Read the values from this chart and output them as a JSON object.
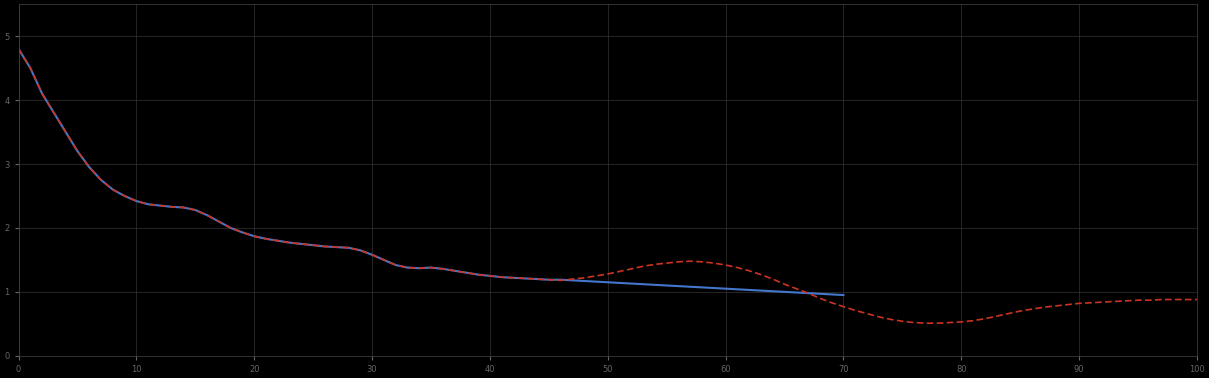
{
  "title": "",
  "background_color": "#000000",
  "plot_bg_color": "#000000",
  "grid_color": "#333333",
  "fig_width": 12.09,
  "fig_height": 3.78,
  "dpi": 100,
  "blue_line": {
    "color": "#4477cc",
    "linewidth": 1.5,
    "linestyle": "-",
    "x": [
      0,
      1,
      2,
      3,
      4,
      5,
      6,
      7,
      8,
      9,
      10,
      11,
      12,
      13,
      14,
      15,
      16,
      17,
      18,
      19,
      20,
      21,
      22,
      23,
      24,
      25,
      26,
      27,
      28,
      29,
      30,
      31,
      32,
      33,
      34,
      35,
      36,
      37,
      38,
      39,
      40,
      41,
      42,
      43,
      44,
      45,
      46,
      47,
      48,
      49,
      50,
      51,
      52,
      53,
      54,
      55,
      56,
      57,
      58,
      59,
      60,
      61,
      62,
      63,
      64,
      65,
      66,
      67,
      68,
      69,
      70,
      71,
      72,
      73,
      74,
      75,
      76,
      77,
      78,
      79,
      80,
      81,
      82,
      83,
      84,
      85,
      86,
      87,
      88,
      89,
      90,
      91,
      92,
      93,
      94,
      95,
      96,
      97,
      98,
      99,
      100
    ],
    "y": [
      4.8,
      4.5,
      4.1,
      3.8,
      3.5,
      3.2,
      2.95,
      2.75,
      2.6,
      2.5,
      2.42,
      2.37,
      2.35,
      2.33,
      2.32,
      2.28,
      2.2,
      2.1,
      2.0,
      1.93,
      1.87,
      1.83,
      1.8,
      1.77,
      1.75,
      1.73,
      1.71,
      1.7,
      1.69,
      1.65,
      1.58,
      1.5,
      1.42,
      1.38,
      1.37,
      1.38,
      1.36,
      1.33,
      1.3,
      1.27,
      1.25,
      1.23,
      1.22,
      1.21,
      1.2,
      1.19,
      1.19,
      1.18,
      1.17,
      1.16,
      1.15,
      1.14,
      1.13,
      1.12,
      1.11,
      1.1,
      1.09,
      1.08,
      1.07,
      1.06,
      1.05,
      1.04,
      1.03,
      1.02,
      1.01,
      1.0,
      0.99,
      0.98,
      0.97,
      0.96,
      0.95,
      null,
      null,
      null,
      null,
      null,
      null,
      null,
      null,
      null,
      null,
      null,
      null,
      null,
      null,
      null,
      null,
      null,
      null,
      null,
      null,
      null,
      null,
      null,
      null,
      null,
      null,
      null,
      null,
      null,
      null
    ]
  },
  "red_line": {
    "color": "#cc3322",
    "linewidth": 1.2,
    "linestyle": "--",
    "x": [
      0,
      1,
      2,
      3,
      4,
      5,
      6,
      7,
      8,
      9,
      10,
      11,
      12,
      13,
      14,
      15,
      16,
      17,
      18,
      19,
      20,
      21,
      22,
      23,
      24,
      25,
      26,
      27,
      28,
      29,
      30,
      31,
      32,
      33,
      34,
      35,
      36,
      37,
      38,
      39,
      40,
      41,
      42,
      43,
      44,
      45,
      46,
      47,
      48,
      49,
      50,
      51,
      52,
      53,
      54,
      55,
      56,
      57,
      58,
      59,
      60,
      61,
      62,
      63,
      64,
      65,
      66,
      67,
      68,
      69,
      70,
      71,
      72,
      73,
      74,
      75,
      76,
      77,
      78,
      79,
      80,
      81,
      82,
      83,
      84,
      85,
      86,
      87,
      88,
      89,
      90,
      91,
      92,
      93,
      94,
      95,
      96,
      97,
      98,
      99,
      100
    ],
    "y": [
      4.8,
      4.5,
      4.1,
      3.8,
      3.5,
      3.2,
      2.95,
      2.75,
      2.6,
      2.5,
      2.42,
      2.37,
      2.35,
      2.33,
      2.32,
      2.28,
      2.2,
      2.1,
      2.0,
      1.93,
      1.87,
      1.83,
      1.8,
      1.77,
      1.75,
      1.73,
      1.71,
      1.7,
      1.69,
      1.65,
      1.58,
      1.5,
      1.42,
      1.38,
      1.37,
      1.38,
      1.36,
      1.33,
      1.3,
      1.27,
      1.25,
      1.23,
      1.22,
      1.21,
      1.2,
      1.19,
      1.18,
      1.2,
      1.22,
      1.25,
      1.28,
      1.32,
      1.36,
      1.4,
      1.43,
      1.45,
      1.47,
      1.48,
      1.47,
      1.45,
      1.42,
      1.38,
      1.33,
      1.27,
      1.2,
      1.12,
      1.05,
      0.98,
      0.9,
      0.83,
      0.77,
      0.71,
      0.66,
      0.61,
      0.57,
      0.54,
      0.52,
      0.51,
      0.51,
      0.52,
      0.53,
      0.55,
      0.58,
      0.62,
      0.66,
      0.7,
      0.73,
      0.76,
      0.78,
      0.8,
      0.82,
      0.83,
      0.84,
      0.85,
      0.86,
      0.87,
      0.87,
      0.88,
      0.88,
      0.88,
      0.88
    ]
  },
  "xlim": [
    0,
    100
  ],
  "ylim": [
    0,
    5.5
  ],
  "xticks_count": 10,
  "yticks_count": 6
}
